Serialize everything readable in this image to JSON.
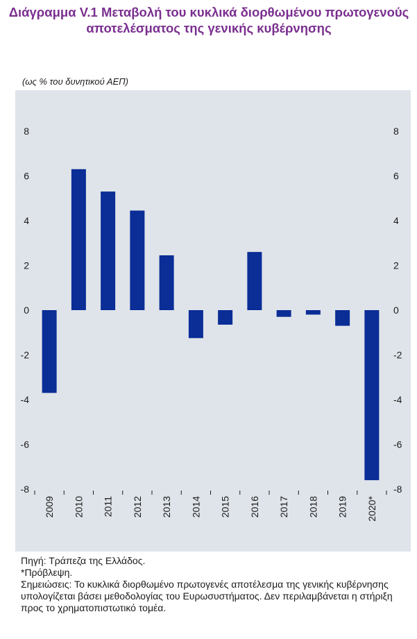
{
  "title": "Διάγραμμα V.1 Μεταβολή του κυκλικά διορθωμένου πρωτογενούς αποτελέσματος της γενικής κυβέρνησης",
  "unit_label": "(ως % του δυνητικού ΑΕΠ)",
  "colors": {
    "bar": "#0a2d96",
    "title": "#7a2f8f",
    "plot_bg": "#dfe4ea"
  },
  "chart_data": {
    "type": "bar",
    "title": "Μεταβολή του κυκλικά διορθωμένου πρωτογενούς αποτελέσματος της γενικής κυβέρνησης",
    "ylabel": "(ως % του δυνητικού ΑΕΠ)",
    "categories": [
      "2009",
      "2010",
      "2011",
      "2012",
      "2013",
      "2014",
      "2015",
      "2016",
      "2017",
      "2018",
      "2019",
      "2020*"
    ],
    "values": [
      -3.7,
      6.3,
      5.3,
      4.45,
      2.45,
      -1.25,
      -0.65,
      2.6,
      -0.3,
      -0.2,
      -0.7,
      -7.6
    ],
    "ylim": [
      -8,
      8
    ],
    "yticks": [
      "-8",
      "-6",
      "-4",
      "-2",
      "0",
      "2",
      "4",
      "6",
      "8"
    ],
    "dual_axis_labels": true,
    "grid": false,
    "legend": "none"
  },
  "notes": {
    "source": "Πηγή: Τράπεζα της Ελλάδος.",
    "forecast": "*Πρόβλεψη.",
    "remarks": "Σημειώσεις: Το κυκλικά διορθωμένο πρωτογενές αποτέλεσμα της γενικής κυβέρνησης υπολογίζεται βάσει μεθοδολογίας του Ευρωσυστήματος. Δεν περιλαμβάνεται η στήριξη προς το χρηματοπιστωτικό τομέα."
  }
}
